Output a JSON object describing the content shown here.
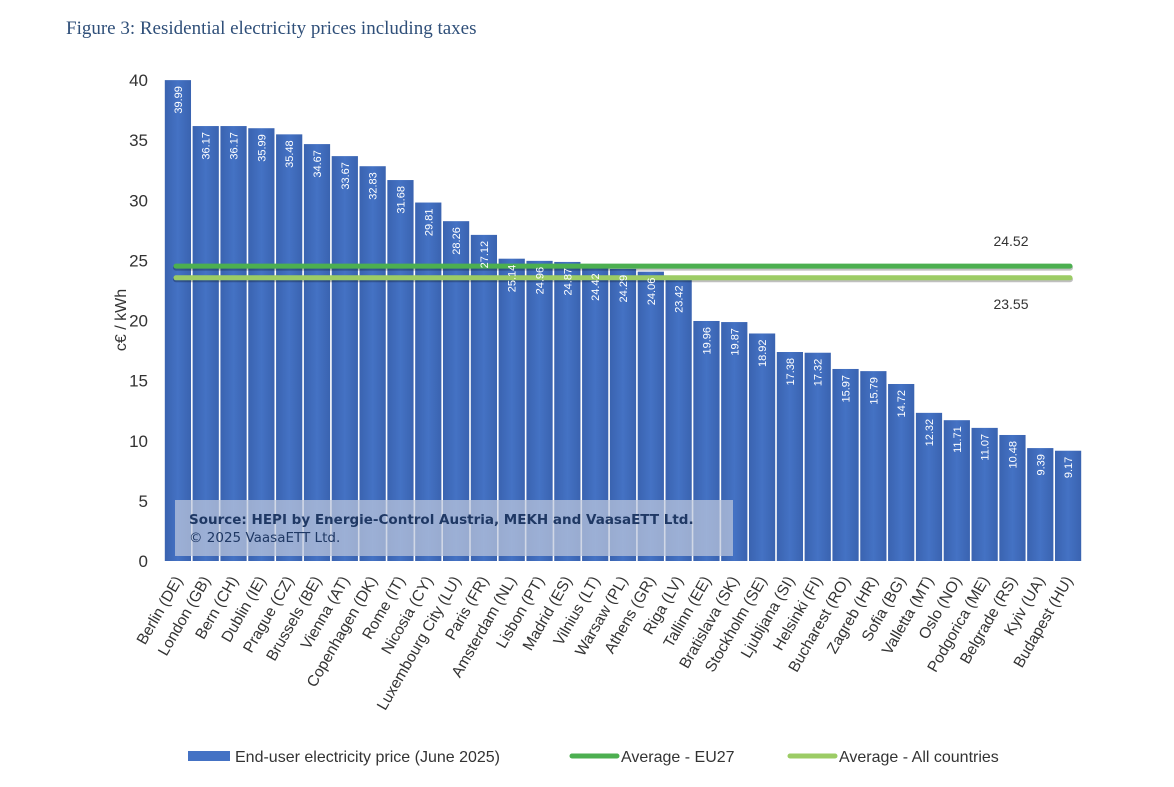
{
  "figure_title": "Figure 3: Residential electricity prices including taxes",
  "source_note": {
    "line1": "Source: HEPI by Energie-Control Austria, MEKH and VaasaETT Ltd.",
    "line2": "© 2025 VaasaETT Ltd."
  },
  "colors": {
    "bar": "#4472c4",
    "avg_eu27": "#4caf50",
    "avg_all": "#9ccc65",
    "title": "#2f4f79"
  },
  "chart_data": {
    "type": "bar",
    "ylabel": "c€ / kWh",
    "ylim": [
      0,
      40
    ],
    "yticks": [
      0,
      5,
      10,
      15,
      20,
      25,
      30,
      35,
      40
    ],
    "grid": false,
    "legend_position": "bottom",
    "categories": [
      "Berlin (DE)",
      "London (GB)",
      "Bern (CH)",
      "Dublin (IE)",
      "Prague (CZ)",
      "Brussels (BE)",
      "Vienna (AT)",
      "Copenhagen (DK)",
      "Rome (IT)",
      "Nicosia (CY)",
      "Luxembourg City (LU)",
      "Paris (FR)",
      "Amsterdam (NL)",
      "Lisbon (PT)",
      "Madrid (ES)",
      "Vilnius (LT)",
      "Warsaw (PL)",
      "Athens (GR)",
      "Riga (LV)",
      "Tallinn (EE)",
      "Bratislava (SK)",
      "Stockholm (SE)",
      "Ljubljana (SI)",
      "Helsinki (FI)",
      "Bucharest (RO)",
      "Zagreb (HR)",
      "Sofia (BG)",
      "Valletta (MT)",
      "Oslo (NO)",
      "Podgorica (ME)",
      "Belgrade (RS)",
      "Kyiv (UA)",
      "Budapest (HU)"
    ],
    "series": [
      {
        "name": "End-user electricity price (June 2025)",
        "kind": "bar",
        "values": [
          39.99,
          36.17,
          36.17,
          35.99,
          35.48,
          34.67,
          33.67,
          32.83,
          31.68,
          29.81,
          28.26,
          27.12,
          25.14,
          24.96,
          24.87,
          24.42,
          24.29,
          24.06,
          23.42,
          19.96,
          19.87,
          18.92,
          17.38,
          17.32,
          15.97,
          15.79,
          14.72,
          12.32,
          11.71,
          11.07,
          10.48,
          9.39,
          9.17
        ],
        "value_labels": [
          "39.99",
          "36.17",
          "36.17",
          "35.99",
          "35.48",
          "34.67",
          "33.67",
          "32.83",
          "31.68",
          "29.81",
          "28.26",
          "27.12",
          "25.14",
          "24.96",
          "24.87",
          "24.42",
          "24.29",
          "24.06",
          "23.42",
          "19.96",
          "19.87",
          "18.92",
          "17.38",
          "17.32",
          "15.97",
          "15.79",
          "14.72",
          "12.32",
          "11.71",
          "11.07",
          "10.48",
          "9.39",
          "9.17"
        ]
      },
      {
        "name": "Average - EU27",
        "kind": "line",
        "value": 24.52,
        "value_label": "24.52"
      },
      {
        "name": "Average - All countries",
        "kind": "line",
        "value": 23.55,
        "value_label": "23.55"
      }
    ]
  }
}
